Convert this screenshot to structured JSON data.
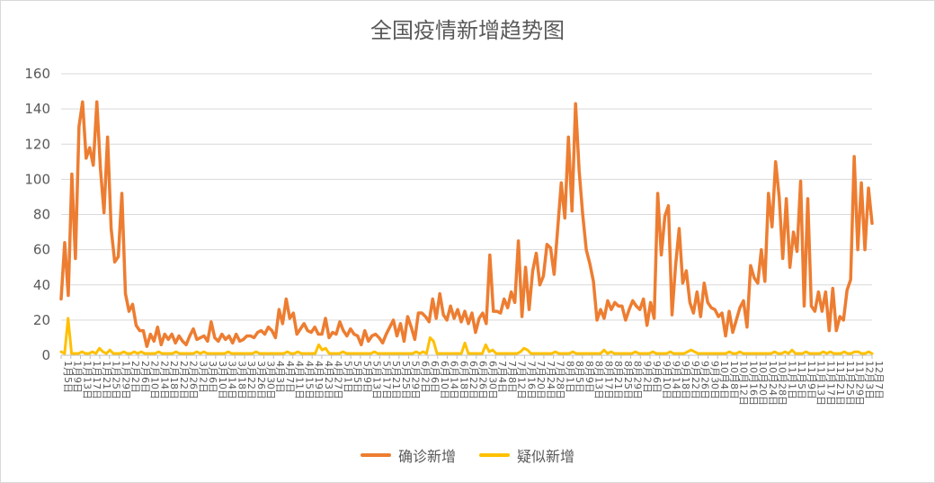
{
  "chart_data": {
    "type": "line",
    "title": "全国疫情新增趋势图",
    "ylim": [
      0,
      160
    ],
    "yticks": [
      0,
      20,
      40,
      60,
      80,
      100,
      120,
      140,
      160
    ],
    "grid": true,
    "legend_position": "bottom",
    "x_tick_labels": [
      "1月5日",
      "1月9日",
      "1月13日",
      "1月17日",
      "1月21日",
      "1月25日",
      "1月29日",
      "2月2日",
      "2月6日",
      "2月10日",
      "2月14日",
      "2月18日",
      "2月22日",
      "2月26日",
      "3月2日",
      "3月6日",
      "3月10日",
      "3月14日",
      "3月18日",
      "3月22日",
      "3月26日",
      "3月30日",
      "4月3日",
      "4月7日",
      "4月11日",
      "4月15日",
      "4月19日",
      "4月23日",
      "4月27日",
      "5月1日",
      "5月5日",
      "5月9日",
      "5月13日",
      "5月17日",
      "5月21日",
      "5月25日",
      "5月29日",
      "6月2日",
      "6月6日",
      "6月10日",
      "6月14日",
      "6月18日",
      "6月22日",
      "6月26日",
      "6月30日",
      "7月4日",
      "7月8日",
      "7月12日",
      "7月16日",
      "7月20日",
      "7月24日",
      "7月28日",
      "8月1日",
      "8月5日",
      "8月9日",
      "8月13日",
      "8月17日",
      "8月21日",
      "8月25日",
      "8月29日",
      "9月2日",
      "9月6日",
      "9月10日",
      "9月14日",
      "9月18日",
      "9月22日",
      "9月26日",
      "9月30日",
      "10月4日",
      "10月8日",
      "10月12日",
      "10月16日",
      "10月20日",
      "10月24日",
      "10月28日",
      "11月1日",
      "11月5日",
      "11月9日",
      "11月13日",
      "11月17日",
      "11月21日",
      "11月25日",
      "11月29日",
      "12月3日",
      "12月7日"
    ],
    "series": [
      {
        "name": "确诊新增",
        "color": "#ED7D31",
        "values": [
          32,
          64,
          34,
          103,
          55,
          130,
          144,
          112,
          118,
          108,
          144,
          106,
          81,
          124,
          72,
          53,
          56,
          92,
          35,
          25,
          29,
          17,
          14,
          14,
          5,
          12,
          8,
          16,
          6,
          12,
          9,
          12,
          7,
          11,
          8,
          6,
          11,
          15,
          9,
          10,
          11,
          8,
          19,
          10,
          8,
          12,
          9,
          11,
          7,
          12,
          8,
          9,
          11,
          11,
          10,
          13,
          14,
          12,
          16,
          14,
          10,
          26,
          18,
          32,
          21,
          24,
          12,
          15,
          18,
          14,
          13,
          16,
          12,
          12,
          21,
          10,
          13,
          12,
          19,
          14,
          11,
          15,
          12,
          11,
          6,
          14,
          8,
          11,
          12,
          10,
          7,
          12,
          16,
          20,
          11,
          18,
          8,
          22,
          16,
          9,
          24,
          24,
          22,
          19,
          32,
          21,
          35,
          23,
          20,
          28,
          21,
          26,
          19,
          25,
          18,
          24,
          13,
          21,
          24,
          18,
          57,
          25,
          25,
          24,
          32,
          27,
          36,
          30,
          65,
          22,
          50,
          26,
          48,
          58,
          40,
          45,
          63,
          61,
          46,
          72,
          98,
          78,
          124,
          82,
          143,
          105,
          80,
          60,
          52,
          42,
          20,
          26,
          21,
          31,
          26,
          30,
          28,
          28,
          20,
          26,
          31,
          28,
          26,
          32,
          17,
          30,
          21,
          92,
          57,
          79,
          85,
          23,
          51,
          72,
          41,
          48,
          30,
          24,
          36,
          22,
          41,
          30,
          27,
          26,
          22,
          24,
          11,
          25,
          13,
          20,
          27,
          31,
          16,
          51,
          44,
          41,
          60,
          42,
          92,
          73,
          110,
          90,
          55,
          89,
          50,
          70,
          59,
          99,
          28,
          89,
          28,
          25,
          36,
          25,
          36,
          14,
          38,
          14,
          22,
          20,
          37,
          43,
          113,
          60,
          98,
          60,
          95,
          75
        ],
        "sampled": true
      },
      {
        "name": "疑似新增",
        "color": "#FFC000",
        "values": [
          2,
          1,
          21,
          1,
          1,
          1,
          2,
          1,
          1,
          2,
          1,
          4,
          2,
          1,
          3,
          1,
          1,
          1,
          2,
          1,
          1,
          2,
          1,
          2,
          1,
          1,
          1,
          1,
          2,
          1,
          1,
          1,
          1,
          2,
          1,
          1,
          1,
          1,
          1,
          2,
          1,
          2,
          1,
          1,
          1,
          1,
          1,
          1,
          2,
          1,
          1,
          1,
          1,
          1,
          1,
          1,
          2,
          1,
          1,
          1,
          1,
          1,
          1,
          1,
          1,
          2,
          1,
          1,
          2,
          1,
          1,
          1,
          1,
          1,
          6,
          3,
          4,
          1,
          1,
          1,
          1,
          2,
          1,
          1,
          1,
          1,
          1,
          1,
          1,
          1,
          2,
          1,
          1,
          1,
          1,
          1,
          1,
          1,
          1,
          1,
          1,
          1,
          2,
          1,
          2,
          1,
          10,
          8,
          1,
          1,
          1,
          1,
          1,
          1,
          1,
          1,
          7,
          1,
          1,
          1,
          1,
          1,
          6,
          2,
          3,
          1,
          1,
          1,
          1,
          1,
          1,
          1,
          2,
          4,
          3,
          1,
          1,
          1,
          1,
          1,
          1,
          1,
          2,
          1,
          1,
          1,
          1,
          2,
          1,
          1,
          1,
          1,
          1,
          1,
          1,
          1,
          3,
          1,
          2,
          1,
          1,
          1,
          1,
          1,
          1,
          2,
          1,
          1,
          1,
          1,
          2,
          1,
          1,
          1,
          1,
          2,
          1,
          1,
          1,
          1,
          2,
          3,
          2,
          1,
          1,
          1,
          1,
          1,
          1,
          1,
          1,
          1,
          2,
          1,
          1,
          2,
          1,
          1,
          1,
          1,
          1,
          1,
          1,
          1,
          1,
          2,
          1,
          1,
          2,
          1,
          3,
          1,
          1,
          1,
          2,
          1,
          1,
          1,
          1,
          2,
          1,
          2,
          1,
          1,
          1,
          2,
          1,
          1,
          2,
          2,
          1,
          1,
          2,
          1
        ],
        "sampled": true
      }
    ]
  }
}
